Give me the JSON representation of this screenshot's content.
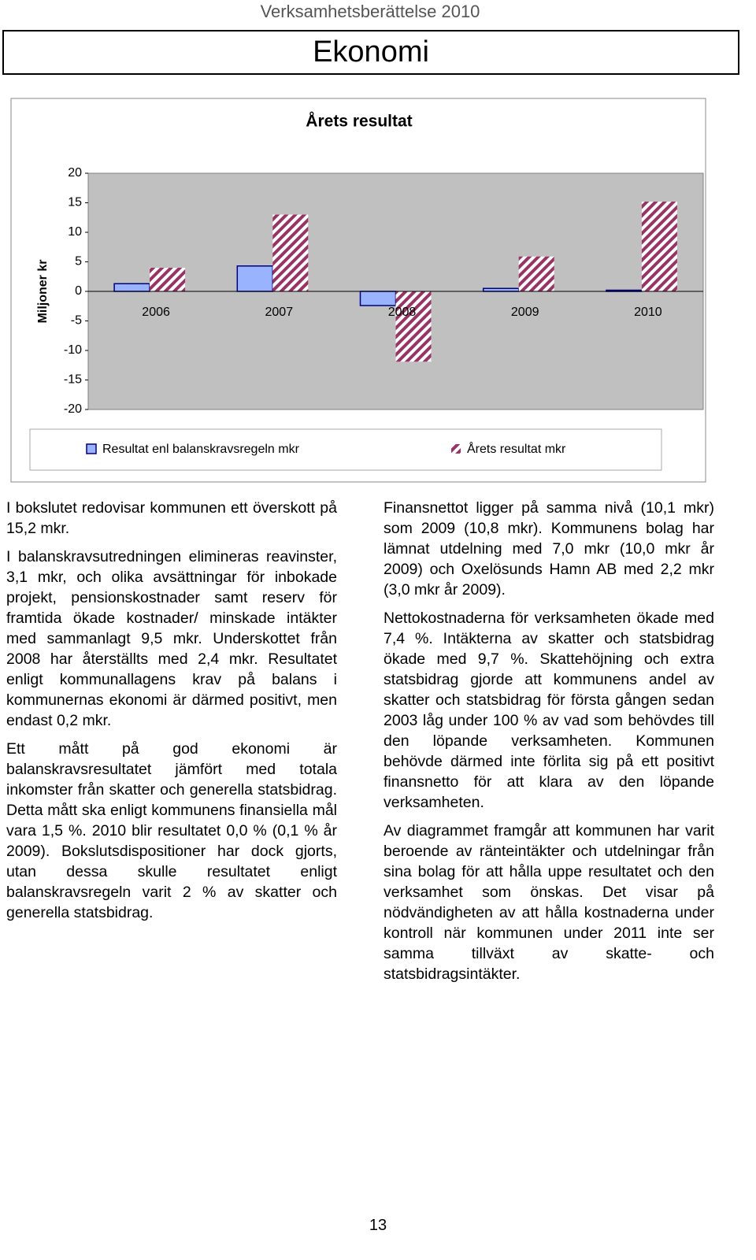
{
  "header": {
    "running_title": "Verksamhetsberättelse 2010",
    "title": "Ekonomi"
  },
  "chart_data": {
    "type": "bar",
    "title": "Årets resultat",
    "y_label": "Miljoner kr",
    "categories": [
      "2006",
      "2007",
      "2008",
      "2009",
      "2010"
    ],
    "series": [
      {
        "name": "Resultat enl balanskravsregeln mkr",
        "color": "#99b3ff",
        "stroke": "#000080",
        "values": [
          1.3,
          4.3,
          -2.4,
          0.5,
          0.2
        ]
      },
      {
        "name": "Årets resultat mkr",
        "color": "#993366",
        "hatched": true,
        "values": [
          4.0,
          13.0,
          -11.9,
          5.9,
          15.2
        ]
      }
    ],
    "ylim": [
      -20,
      20
    ],
    "yticks": [
      -20,
      -15,
      -10,
      -5,
      0,
      5,
      10,
      15,
      20
    ],
    "grid": false,
    "background": "#c0c0c0",
    "legend": "bottom"
  },
  "left_column": [
    "I bokslutet redovisar kommunen ett överskott på 15,2 mkr.",
    "I balanskravsutredningen elimineras reavinster, 3,1 mkr, och olika avsättningar för inbokade projekt, pensionskostnader samt reserv för framtida ökade kostnader/ minskade intäkter med sammanlagt 9,5 mkr. Underskottet från 2008 har återställts med 2,4 mkr. Resultatet enligt kommunallagens krav på balans i kommunernas ekonomi är därmed positivt, men endast 0,2 mkr.",
    "Ett mått på god ekonomi är balanskravsresultatet jämfört med totala inkomster från skatter och generella statsbidrag. Detta mått ska enligt kommunens finansiella mål vara 1,5 %. 2010 blir resultatet 0,0 % (0,1 % år 2009). Bokslutsdispositioner har dock gjorts, utan dessa skulle resultatet enligt balanskravsregeln varit 2 % av skatter och generella statsbidrag."
  ],
  "right_column": [
    "Finansnettot ligger på samma nivå (10,1 mkr) som 2009 (10,8 mkr). Kommunens bolag har lämnat utdelning med 7,0 mkr (10,0 mkr år 2009) och Oxelösunds Hamn AB med 2,2 mkr (3,0 mkr år 2009).",
    "Nettokostnaderna för verksamheten ökade med 7,4 %. Intäkterna av skatter och statsbidrag ökade med 9,7 %. Skattehöjning och extra statsbidrag gjorde att kommunens andel av skatter och statsbidrag för första gången sedan 2003 låg under 100 % av vad som behövdes till den löpande verksamheten. Kommunen behövde därmed inte förlita sig på ett positivt finansnetto för att klara av den löpande verksamheten.",
    "Av diagrammet framgår att kommunen har varit beroende av ränteintäkter och utdelningar från sina bolag för att hålla uppe resultatet och den verksamhet som önskas. Det visar på nödvändigheten av att hålla kostnaderna under kontroll när kommunen under 2011 inte ser samma tillväxt av skatte- och statsbidragsintäkter."
  ],
  "page_number": "13"
}
